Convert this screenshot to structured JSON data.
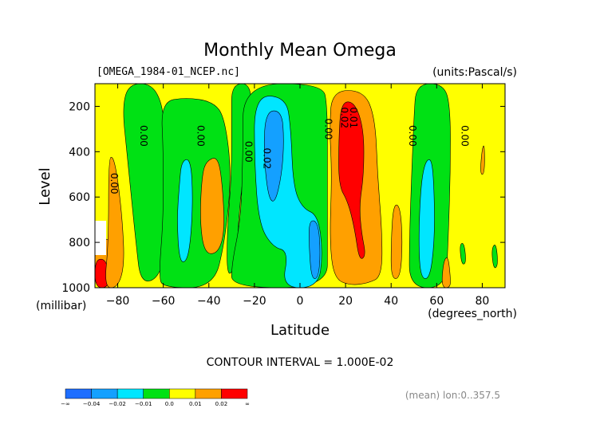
{
  "chart_data": {
    "type": "contour",
    "title": "Monthly Mean Omega",
    "file_label": "[OMEGA_1984-01_NCEP.nc]",
    "units_label": "(units:Pascal/s)",
    "xlabel": "Latitude",
    "x_units": "(degrees_north)",
    "ylabel": "Level",
    "y_units": "(millibar)",
    "xlim": [
      -90,
      90
    ],
    "ylim": [
      1000,
      100
    ],
    "x_ticks": [
      -80,
      -60,
      -40,
      -20,
      0,
      20,
      40,
      60,
      80
    ],
    "y_ticks": [
      200,
      400,
      600,
      800,
      1000
    ],
    "contour_interval_text": "CONTOUR INTERVAL = 1.000E-02",
    "footnote": "(mean) lon:0..357.5",
    "color_levels": [
      {
        "label": "-∞",
        "color": "#1e6eff"
      },
      {
        "label": "-0.04",
        "color": "#14a0ff"
      },
      {
        "label": "-0.02",
        "color": "#00e6ff"
      },
      {
        "label": "-0.01",
        "color": "#00e114"
      },
      {
        "label": "0.0",
        "color": "#ffff00"
      },
      {
        "label": "0.01",
        "color": "#ffa000"
      },
      {
        "label": "0.02",
        "color": "#ff0000"
      },
      {
        "label": "∞",
        "color": ""
      }
    ],
    "contour_labels": [
      {
        "text": "0.00",
        "lat": -83,
        "lev": 540
      },
      {
        "text": "0.00",
        "lat": -70,
        "lev": 330
      },
      {
        "text": "0.00",
        "lat": -45,
        "lev": 330
      },
      {
        "text": "0.00",
        "lat": -24,
        "lev": 400
      },
      {
        "text": "0.02",
        "lat": -16,
        "lev": 430
      },
      {
        "text": "0.00",
        "lat": 11,
        "lev": 300
      },
      {
        "text": "0.02",
        "lat": 18,
        "lev": 250
      },
      {
        "text": "0.01",
        "lat": 22,
        "lev": 250
      },
      {
        "text": "0.00",
        "lat": 48,
        "lev": 330
      },
      {
        "text": "0.00",
        "lat": 71,
        "lev": 330
      }
    ],
    "regions": [
      {
        "level": "pos1",
        "color": "#ffa000",
        "points": [
          [
            -90,
            790
          ],
          [
            -84,
            780
          ],
          [
            -81,
            840
          ],
          [
            -80,
            1000
          ],
          [
            -90,
            1000
          ]
        ]
      },
      {
        "level": "pos2",
        "color": "#ff0000",
        "points": [
          [
            -90,
            880
          ],
          [
            -86,
            870
          ],
          [
            -84,
            920
          ],
          [
            -84,
            1000
          ],
          [
            -90,
            1000
          ]
        ]
      },
      {
        "level": "pos1",
        "color": "#ffa000",
        "points": [
          [
            -84,
            430
          ],
          [
            -82,
            420
          ],
          [
            -80,
            520
          ],
          [
            -78,
            700
          ],
          [
            -77,
            900
          ],
          [
            -80,
            1000
          ],
          [
            -86,
            1000
          ],
          [
            -84,
            800
          ]
        ]
      },
      {
        "level": "neg1",
        "color": "#00e114",
        "points": [
          [
            -75,
            100
          ],
          [
            -65,
            100
          ],
          [
            -60,
            200
          ],
          [
            -59,
            400
          ],
          [
            -60,
            600
          ],
          [
            -58,
            800
          ],
          [
            -62,
            960
          ],
          [
            -70,
            980
          ],
          [
            -72,
            800
          ],
          [
            -74,
            600
          ],
          [
            -76,
            400
          ],
          [
            -78,
            200
          ]
        ]
      },
      {
        "level": "neg1",
        "color": "#00e114",
        "points": [
          [
            -61,
            180
          ],
          [
            -50,
            160
          ],
          [
            -38,
            180
          ],
          [
            -33,
            250
          ],
          [
            -30,
            500
          ],
          [
            -33,
            800
          ],
          [
            -38,
            1000
          ],
          [
            -60,
            1000
          ],
          [
            -62,
            950
          ],
          [
            -60,
            700
          ],
          [
            -60,
            400
          ]
        ]
      },
      {
        "level": "neg2",
        "color": "#00e6ff",
        "points": [
          [
            -52,
            440
          ],
          [
            -48,
            430
          ],
          [
            -47,
            600
          ],
          [
            -48,
            800
          ],
          [
            -50,
            890
          ],
          [
            -53,
            880
          ],
          [
            -54,
            700
          ],
          [
            -53,
            550
          ]
        ]
      },
      {
        "level": "pos1",
        "color": "#ffa000",
        "points": [
          [
            -41,
            440
          ],
          [
            -36,
            420
          ],
          [
            -34,
            550
          ],
          [
            -33,
            750
          ],
          [
            -36,
            850
          ],
          [
            -42,
            850
          ],
          [
            -44,
            700
          ],
          [
            -43,
            500
          ]
        ]
      },
      {
        "level": "neg1",
        "color": "#00e114",
        "points": [
          [
            -30,
            100
          ],
          [
            -21,
            100
          ],
          [
            -22,
            300
          ],
          [
            -25,
            500
          ],
          [
            -27,
            700
          ],
          [
            -28,
            900
          ],
          [
            -32,
            960
          ],
          [
            -32,
            750
          ],
          [
            -30,
            500
          ],
          [
            -30,
            250
          ]
        ]
      },
      {
        "level": "neg1",
        "color": "#00e114",
        "points": [
          [
            -25,
            100
          ],
          [
            10,
            100
          ],
          [
            12,
            200
          ],
          [
            12,
            500
          ],
          [
            12,
            800
          ],
          [
            12,
            1000
          ],
          [
            -30,
            1000
          ],
          [
            -30,
            900
          ],
          [
            -26,
            700
          ],
          [
            -25,
            400
          ]
        ]
      },
      {
        "level": "neg2",
        "color": "#00e6ff",
        "points": [
          [
            -20,
            150
          ],
          [
            -6,
            160
          ],
          [
            -4,
            300
          ],
          [
            -3,
            550
          ],
          [
            1,
            650
          ],
          [
            8,
            680
          ],
          [
            10,
            850
          ],
          [
            8,
            1000
          ],
          [
            -8,
            1000
          ],
          [
            -5,
            840
          ],
          [
            -12,
            820
          ],
          [
            -18,
            720
          ],
          [
            -20,
            450
          ]
        ]
      },
      {
        "level": "neg3",
        "color": "#14a0ff",
        "points": [
          [
            -15,
            220
          ],
          [
            -8,
            220
          ],
          [
            -7,
            350
          ],
          [
            -8,
            500
          ],
          [
            -11,
            630
          ],
          [
            -14,
            600
          ],
          [
            -16,
            400
          ]
        ]
      },
      {
        "level": "neg3",
        "color": "#14a0ff",
        "points": [
          [
            4,
            700
          ],
          [
            8,
            710
          ],
          [
            9,
            850
          ],
          [
            8,
            960
          ],
          [
            5,
            960
          ],
          [
            4,
            820
          ]
        ]
      },
      {
        "level": "pos1",
        "color": "#ffa000",
        "points": [
          [
            14,
            130
          ],
          [
            28,
            130
          ],
          [
            33,
            250
          ],
          [
            34,
            500
          ],
          [
            36,
            750
          ],
          [
            36,
            950
          ],
          [
            30,
            980
          ],
          [
            22,
            990
          ],
          [
            15,
            960
          ],
          [
            13,
            800
          ],
          [
            14,
            500
          ],
          [
            13,
            300
          ]
        ]
      },
      {
        "level": "pos2",
        "color": "#ff0000",
        "points": [
          [
            18,
            180
          ],
          [
            24,
            180
          ],
          [
            28,
            300
          ],
          [
            28,
            500
          ],
          [
            26,
            640
          ],
          [
            27,
            760
          ],
          [
            29,
            860
          ],
          [
            26,
            880
          ],
          [
            24,
            740
          ],
          [
            21,
            620
          ],
          [
            17,
            550
          ],
          [
            17,
            350
          ]
        ]
      },
      {
        "level": "pos1",
        "color": "#ffa000",
        "points": [
          [
            41,
            630
          ],
          [
            44,
            640
          ],
          [
            45,
            800
          ],
          [
            44,
            960
          ],
          [
            40,
            960
          ],
          [
            40,
            800
          ]
        ]
      },
      {
        "level": "neg1",
        "color": "#00e114",
        "points": [
          [
            51,
            100
          ],
          [
            63,
            100
          ],
          [
            66,
            200
          ],
          [
            66,
            500
          ],
          [
            65,
            800
          ],
          [
            64,
            1000
          ],
          [
            48,
            1000
          ],
          [
            48,
            800
          ],
          [
            49,
            500
          ],
          [
            50,
            250
          ]
        ]
      },
      {
        "level": "neg2",
        "color": "#00e6ff",
        "points": [
          [
            55,
            440
          ],
          [
            58,
            430
          ],
          [
            59,
            600
          ],
          [
            59,
            800
          ],
          [
            57,
            960
          ],
          [
            53,
            960
          ],
          [
            52,
            800
          ],
          [
            53,
            550
          ]
        ]
      },
      {
        "level": "pos1",
        "color": "#ffa000",
        "points": [
          [
            63,
            880
          ],
          [
            65,
            860
          ],
          [
            66,
            950
          ],
          [
            66,
            1000
          ],
          [
            62,
            1000
          ]
        ]
      },
      {
        "level": "neg1",
        "color": "#00e114",
        "points": [
          [
            70,
            810
          ],
          [
            72,
            800
          ],
          [
            73,
            890
          ],
          [
            71,
            900
          ]
        ]
      },
      {
        "level": "pos1",
        "color": "#ffa000",
        "points": [
          [
            80,
            380
          ],
          [
            81,
            370
          ],
          [
            81,
            500
          ],
          [
            79,
            500
          ]
        ]
      },
      {
        "level": "neg1",
        "color": "#00e114",
        "points": [
          [
            84,
            830
          ],
          [
            86,
            800
          ],
          [
            87,
            900
          ],
          [
            85,
            920
          ]
        ]
      }
    ]
  }
}
